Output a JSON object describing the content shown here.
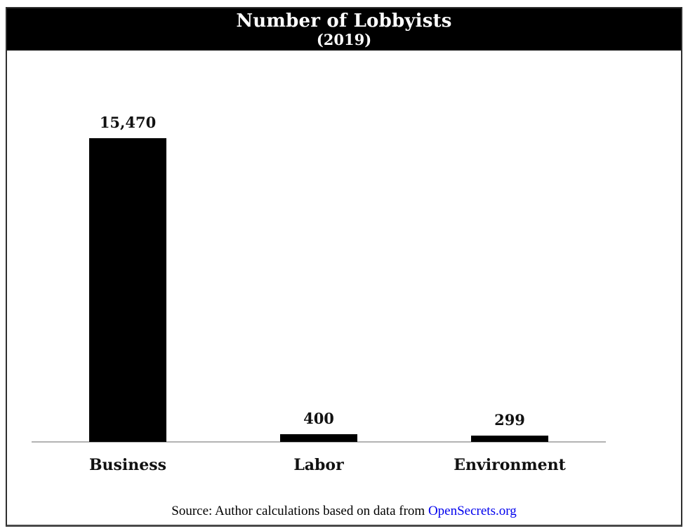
{
  "figure": {
    "title_line1": "Number of Lobbyists",
    "title_line2": "(2019)",
    "source_prefix": "Source: Author calculations based on data from ",
    "source_link": "OpenSecrets.org"
  },
  "colors": {
    "bar": "#000000",
    "title_bg": "#000000",
    "title_text": "#ffffff",
    "link": "#0000ee",
    "axis_line": "#b3b3b3",
    "frame_border": "#2e2e2e",
    "frame_border_bottom": "#4a4a4a",
    "label_text": "#111111"
  },
  "chart_data": {
    "type": "bar",
    "title": "Number of Lobbyists",
    "subtitle": "(2019)",
    "categories": [
      "Business",
      "Labor",
      "Environment"
    ],
    "values": [
      15470,
      400,
      299
    ],
    "value_labels": [
      "15,470",
      "400",
      "299"
    ],
    "xlabel": "",
    "ylabel": "",
    "ylim": [
      0,
      15470
    ],
    "grid": false,
    "legend": false,
    "bar_color": "#000000",
    "source": "Source: Author calculations based on data from OpenSecrets.org"
  }
}
